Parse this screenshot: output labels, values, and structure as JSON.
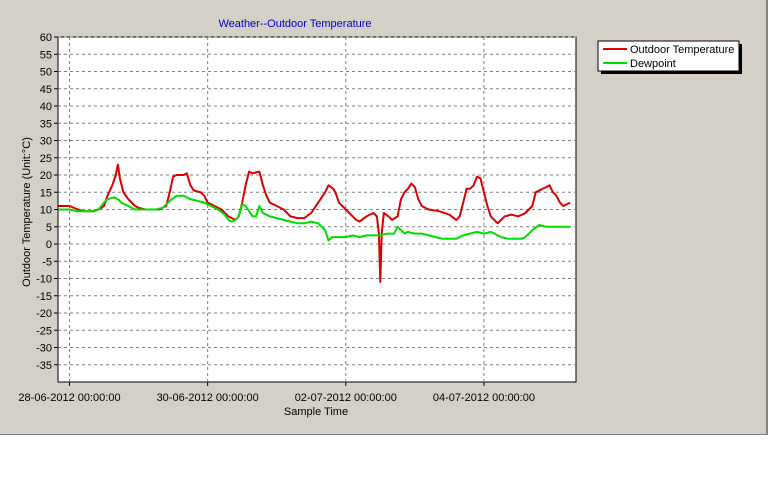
{
  "chart_data": {
    "type": "line",
    "title": "Weather--Outdoor Temperature",
    "xlabel": "Sample Time",
    "ylabel": "Outdoor Temperature (Unit:°C)",
    "ylim": [
      -40,
      60
    ],
    "yticks": [
      60,
      55,
      50,
      45,
      40,
      35,
      30,
      25,
      20,
      15,
      10,
      5,
      0,
      -5,
      -10,
      -15,
      -20,
      -25,
      -30,
      -35
    ],
    "xlim": [
      "2012-06-27 20:00",
      "2012-07-05 16:00"
    ],
    "xticks": [
      "28-06-2012 00:00:00",
      "30-06-2012 00:00:00",
      "02-07-2012 00:00:00",
      "04-07-2012 00:00:00"
    ],
    "grid": true,
    "legend": "top-right",
    "x_unit": "day offset from 28-06-2012 00:00",
    "series": [
      {
        "name": "Outdoor Temperature",
        "color": "#dd0000",
        "points": [
          [
            -0.16,
            11
          ],
          [
            0.0,
            11
          ],
          [
            0.12,
            10
          ],
          [
            0.2,
            9.5
          ],
          [
            0.35,
            9.5
          ],
          [
            0.42,
            10
          ],
          [
            0.5,
            11
          ],
          [
            0.55,
            14
          ],
          [
            0.62,
            17
          ],
          [
            0.67,
            20
          ],
          [
            0.7,
            23
          ],
          [
            0.73,
            19
          ],
          [
            0.78,
            15
          ],
          [
            0.85,
            13
          ],
          [
            0.95,
            11
          ],
          [
            1.0,
            10.5
          ],
          [
            1.1,
            10
          ],
          [
            1.2,
            10
          ],
          [
            1.3,
            10
          ],
          [
            1.4,
            11
          ],
          [
            1.45,
            15
          ],
          [
            1.5,
            19.5
          ],
          [
            1.55,
            20
          ],
          [
            1.6,
            20
          ],
          [
            1.65,
            20
          ],
          [
            1.7,
            20.5
          ],
          [
            1.75,
            17
          ],
          [
            1.8,
            15.5
          ],
          [
            1.9,
            15
          ],
          [
            1.95,
            14
          ],
          [
            2.0,
            12
          ],
          [
            2.1,
            11
          ],
          [
            2.2,
            10
          ],
          [
            2.25,
            9
          ],
          [
            2.3,
            8
          ],
          [
            2.4,
            7
          ],
          [
            2.45,
            8
          ],
          [
            2.5,
            12
          ],
          [
            2.55,
            17
          ],
          [
            2.6,
            21
          ],
          [
            2.65,
            20.5
          ],
          [
            2.75,
            21
          ],
          [
            2.8,
            17
          ],
          [
            2.85,
            14
          ],
          [
            2.9,
            12
          ],
          [
            3.0,
            11
          ],
          [
            3.1,
            10
          ],
          [
            3.2,
            8
          ],
          [
            3.3,
            7.5
          ],
          [
            3.4,
            7.5
          ],
          [
            3.5,
            9
          ],
          [
            3.6,
            12
          ],
          [
            3.7,
            15
          ],
          [
            3.75,
            17
          ],
          [
            3.82,
            16
          ],
          [
            3.85,
            15
          ],
          [
            3.9,
            12
          ],
          [
            4.0,
            10
          ],
          [
            4.1,
            8
          ],
          [
            4.15,
            7
          ],
          [
            4.2,
            6.5
          ],
          [
            4.3,
            8
          ],
          [
            4.4,
            9
          ],
          [
            4.45,
            8
          ],
          [
            4.48,
            3
          ],
          [
            4.5,
            -11
          ],
          [
            4.52,
            3
          ],
          [
            4.55,
            9
          ],
          [
            4.62,
            8
          ],
          [
            4.67,
            7
          ],
          [
            4.75,
            8
          ],
          [
            4.8,
            13
          ],
          [
            4.85,
            15
          ],
          [
            4.9,
            16
          ],
          [
            4.95,
            17.5
          ],
          [
            5.0,
            16.5
          ],
          [
            5.05,
            13
          ],
          [
            5.1,
            11
          ],
          [
            5.2,
            10
          ],
          [
            5.35,
            9.5
          ],
          [
            5.5,
            8.5
          ],
          [
            5.6,
            7
          ],
          [
            5.65,
            8
          ],
          [
            5.7,
            12
          ],
          [
            5.75,
            16
          ],
          [
            5.8,
            16
          ],
          [
            5.85,
            17
          ],
          [
            5.9,
            19.5
          ],
          [
            5.95,
            19
          ],
          [
            6.0,
            15
          ],
          [
            6.05,
            11
          ],
          [
            6.1,
            8
          ],
          [
            6.15,
            7
          ],
          [
            6.2,
            6
          ],
          [
            6.25,
            7
          ],
          [
            6.3,
            8
          ],
          [
            6.4,
            8.5
          ],
          [
            6.5,
            8
          ],
          [
            6.6,
            9
          ],
          [
            6.7,
            11
          ],
          [
            6.75,
            15
          ],
          [
            6.85,
            16
          ],
          [
            6.9,
            16.5
          ],
          [
            6.95,
            17
          ],
          [
            7.0,
            15
          ],
          [
            7.05,
            14
          ],
          [
            7.1,
            12
          ],
          [
            7.15,
            11
          ],
          [
            7.25,
            12
          ]
        ]
      },
      {
        "name": "Dewpoint",
        "color": "#00dd00",
        "points": [
          [
            -0.16,
            10
          ],
          [
            0.0,
            10
          ],
          [
            0.1,
            9.5
          ],
          [
            0.2,
            9.5
          ],
          [
            0.35,
            9.5
          ],
          [
            0.42,
            10
          ],
          [
            0.5,
            12
          ],
          [
            0.55,
            13
          ],
          [
            0.65,
            13.5
          ],
          [
            0.7,
            13
          ],
          [
            0.75,
            12
          ],
          [
            0.85,
            11
          ],
          [
            0.95,
            10
          ],
          [
            1.05,
            10
          ],
          [
            1.15,
            10
          ],
          [
            1.25,
            10
          ],
          [
            1.35,
            10.5
          ],
          [
            1.45,
            12.5
          ],
          [
            1.55,
            14
          ],
          [
            1.65,
            14
          ],
          [
            1.75,
            13
          ],
          [
            1.85,
            12.5
          ],
          [
            1.95,
            12
          ],
          [
            2.05,
            11
          ],
          [
            2.15,
            10
          ],
          [
            2.25,
            8.5
          ],
          [
            2.3,
            7
          ],
          [
            2.35,
            6.5
          ],
          [
            2.4,
            7
          ],
          [
            2.45,
            8
          ],
          [
            2.5,
            11.5
          ],
          [
            2.55,
            11
          ],
          [
            2.6,
            9.5
          ],
          [
            2.65,
            8
          ],
          [
            2.7,
            8
          ],
          [
            2.75,
            11
          ],
          [
            2.8,
            9
          ],
          [
            2.85,
            8.5
          ],
          [
            2.9,
            8
          ],
          [
            3.0,
            7.5
          ],
          [
            3.1,
            7
          ],
          [
            3.2,
            6.5
          ],
          [
            3.3,
            6
          ],
          [
            3.4,
            6
          ],
          [
            3.5,
            6.5
          ],
          [
            3.6,
            6
          ],
          [
            3.65,
            5
          ],
          [
            3.7,
            4
          ],
          [
            3.75,
            1
          ],
          [
            3.8,
            2
          ],
          [
            3.9,
            2
          ],
          [
            4.0,
            2
          ],
          [
            4.1,
            2.5
          ],
          [
            4.2,
            2
          ],
          [
            4.3,
            2.5
          ],
          [
            4.4,
            2.5
          ],
          [
            4.5,
            2.5
          ],
          [
            4.6,
            3
          ],
          [
            4.7,
            3
          ],
          [
            4.75,
            5
          ],
          [
            4.85,
            3
          ],
          [
            4.9,
            3.5
          ],
          [
            5.0,
            3
          ],
          [
            5.1,
            3
          ],
          [
            5.2,
            2.5
          ],
          [
            5.3,
            2
          ],
          [
            5.4,
            1.5
          ],
          [
            5.5,
            1.5
          ],
          [
            5.6,
            1.5
          ],
          [
            5.7,
            2.5
          ],
          [
            5.8,
            3
          ],
          [
            5.9,
            3.5
          ],
          [
            6.0,
            3
          ],
          [
            6.1,
            3.5
          ],
          [
            6.15,
            3
          ],
          [
            6.25,
            2
          ],
          [
            6.35,
            1.5
          ],
          [
            6.45,
            1.5
          ],
          [
            6.55,
            1.5
          ],
          [
            6.6,
            2
          ],
          [
            6.7,
            4
          ],
          [
            6.8,
            5.5
          ],
          [
            6.9,
            5
          ],
          [
            7.0,
            5
          ],
          [
            7.1,
            5
          ],
          [
            7.2,
            5
          ],
          [
            7.25,
            5
          ]
        ]
      }
    ]
  }
}
